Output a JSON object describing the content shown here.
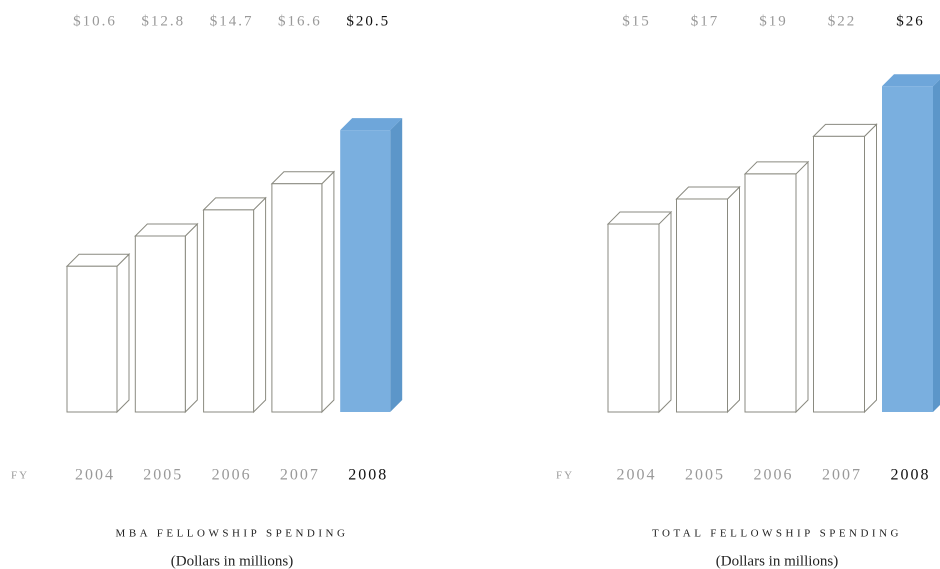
{
  "chart_data": [
    {
      "type": "bar",
      "title": "MBA FELLOWSHIP SPENDING",
      "subtitle": "(Dollars in millions)",
      "x_label": "FY",
      "categories": [
        "2004",
        "2005",
        "2006",
        "2007",
        "2008"
      ],
      "values": [
        10.6,
        12.8,
        14.7,
        16.6,
        20.5
      ],
      "value_labels": [
        "$10.6",
        "$12.8",
        "$14.7",
        "$16.6",
        "$20.5"
      ],
      "colors": [
        "#ffffff",
        "#ffffff",
        "#ffffff",
        "#ffffff",
        "#7aafdf"
      ]
    },
    {
      "type": "bar",
      "title": "TOTAL FELLOWSHIP SPENDING",
      "subtitle": "(Dollars in millions)",
      "x_label": "FY",
      "categories": [
        "2004",
        "2005",
        "2006",
        "2007",
        "2008"
      ],
      "values": [
        15,
        17,
        19,
        22,
        26
      ],
      "value_labels": [
        "$15",
        "$17",
        "$19",
        "$22",
        "$26"
      ],
      "colors": [
        "#ffffff",
        "#ffffff",
        "#ffffff",
        "#ffffff",
        "#7aafdf"
      ]
    }
  ]
}
